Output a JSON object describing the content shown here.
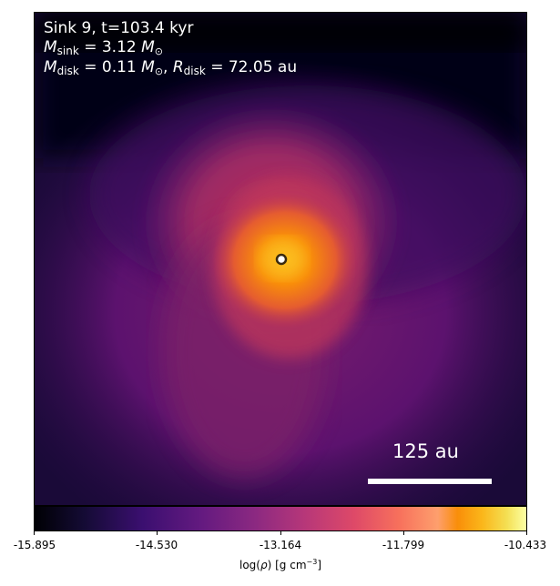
{
  "annotation": {
    "line1": "Sink 9, t=103.4 kyr",
    "msink_symbol": "M",
    "msink_sub": "sink",
    "msink_value": " = 3.12 ",
    "msun_symbol": "M",
    "msun_sub": "⊙",
    "mdisk_symbol": "M",
    "mdisk_sub": "disk",
    "mdisk_value": " = 0.11 ",
    "rdisk_symbol": "R",
    "rdisk_sub": "disk",
    "rdisk_value": " = 72.05 au"
  },
  "scalebar": {
    "label": "125 au"
  },
  "colorbar": {
    "ticks": [
      "-15.895",
      "-14.530",
      "-13.164",
      "-11.799",
      "-10.433"
    ],
    "label_pre": "log(",
    "label_rho": "ρ",
    "label_post": ") [g cm",
    "label_exp": "−3",
    "label_end": "]",
    "colormap": "inferno"
  },
  "colors": {
    "background": "#000004",
    "envelope": "#6a176e",
    "core": "#f98e09",
    "peak": "#fcffa4"
  }
}
